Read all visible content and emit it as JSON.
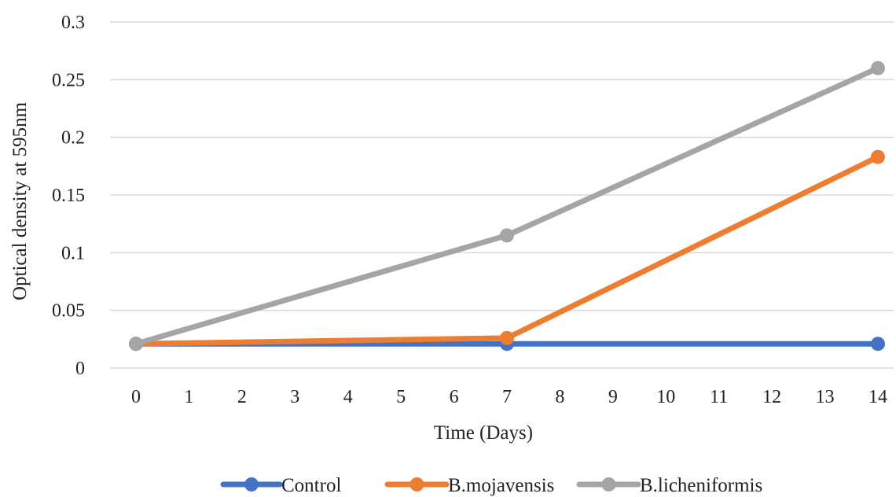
{
  "chart_data": {
    "type": "line",
    "title": "",
    "xlabel": "Time (Days)",
    "ylabel": "Optical density at 595nm",
    "x_ticks": [
      "0",
      "1",
      "2",
      "3",
      "4",
      "5",
      "6",
      "7",
      "8",
      "9",
      "10",
      "11",
      "12",
      "13",
      "14"
    ],
    "y_ticks": [
      "0",
      "0.05",
      "0.1",
      "0.15",
      "0.2",
      "0.25",
      "0.3"
    ],
    "xlim": [
      0,
      14
    ],
    "ylim": [
      0,
      0.3
    ],
    "grid": "horizontal",
    "legend_position": "bottom",
    "series": [
      {
        "name": "Control",
        "color": "#4472c4",
        "x": [
          0,
          7,
          14
        ],
        "y": [
          0.021,
          0.021,
          0.021
        ]
      },
      {
        "name": "B.mojavensis",
        "color": "#ed7d31",
        "x": [
          0,
          7,
          14
        ],
        "y": [
          0.021,
          0.026,
          0.183
        ]
      },
      {
        "name": "B.licheniformis",
        "color": "#a5a5a5",
        "x": [
          0,
          7,
          14
        ],
        "y": [
          0.021,
          0.115,
          0.26
        ]
      }
    ]
  }
}
